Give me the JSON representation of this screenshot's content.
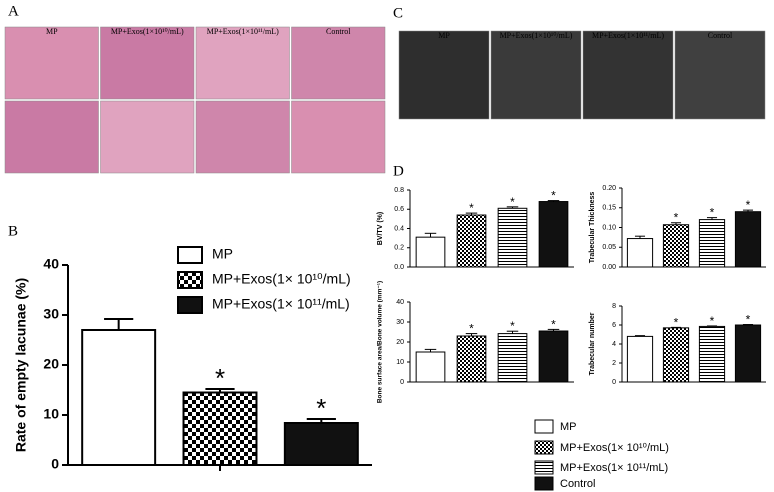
{
  "panels": {
    "A": {
      "letter": "A",
      "columns": [
        "MP",
        "MP+Exos(1×10¹⁰/mL)",
        "MP+Exos(1×10¹¹/mL)",
        "Control"
      ]
    },
    "B": {
      "letter": "B"
    },
    "C": {
      "letter": "C",
      "columns": [
        "MP",
        "MP+Exos(1×10¹⁰/mL)",
        "MP+Exos(1×10¹¹/mL)",
        "Control"
      ]
    },
    "D": {
      "letter": "D"
    }
  },
  "chart_data": [
    {
      "type": "bar",
      "ylabel": "Rate of empty lacunae (%)",
      "ylim": [
        0,
        40
      ],
      "yticks": [
        0,
        10,
        20,
        30,
        40
      ],
      "series": [
        {
          "name": "MP",
          "fill": "white",
          "values": [
            27
          ],
          "errors": [
            2.2
          ]
        },
        {
          "name": "MP+Exos(1× 10¹⁰/mL)",
          "fill": "checker",
          "values": [
            14.5
          ],
          "errors": [
            0.7
          ],
          "note": "*"
        },
        {
          "name": "MP+Exos(1× 10¹¹/mL)",
          "fill": "black",
          "values": [
            8.4
          ],
          "errors": [
            0.8
          ],
          "note": "*"
        }
      ]
    },
    {
      "type": "bar",
      "ylabel": "BV/TV (%)",
      "ylim": [
        0,
        0.8
      ],
      "yticks": [
        {
          "value": 0,
          "label": "0.0"
        },
        0.2,
        0.4,
        0.6,
        0.8
      ],
      "series": [
        {
          "name": "MP",
          "fill": "white",
          "values": [
            0.31
          ],
          "errors": [
            0.04
          ]
        },
        {
          "name": "MP+Exos(1× 10¹⁰/mL)",
          "fill": "checker",
          "values": [
            0.54
          ],
          "errors": [
            0.02
          ],
          "note": "*"
        },
        {
          "name": "MP+Exos(1× 10¹¹/mL)",
          "fill": "stripes",
          "values": [
            0.61
          ],
          "errors": [
            0.015
          ],
          "note": "*"
        },
        {
          "name": "Control",
          "fill": "black",
          "values": [
            0.68
          ],
          "errors": [
            0.01
          ],
          "note": "*"
        }
      ]
    },
    {
      "type": "bar",
      "ylabel": "Trabecular Thickness",
      "ylim": [
        0,
        0.2
      ],
      "yticks": [
        {
          "value": 0,
          "label": "0.00"
        },
        {
          "value": 0.05,
          "label": "0.05"
        },
        {
          "value": 0.1,
          "label": "0.10"
        },
        {
          "value": 0.15,
          "label": "0.15"
        },
        {
          "value": 0.2,
          "label": "0.20"
        }
      ],
      "series": [
        {
          "fill": "white",
          "values": [
            0.072
          ],
          "errors": [
            0.006
          ]
        },
        {
          "fill": "checker",
          "values": [
            0.107
          ],
          "errors": [
            0.005
          ],
          "note": "*"
        },
        {
          "fill": "stripes",
          "values": [
            0.12
          ],
          "errors": [
            0.005
          ],
          "note": "*"
        },
        {
          "fill": "black",
          "values": [
            0.14
          ],
          "errors": [
            0.004
          ],
          "note": "*"
        }
      ]
    },
    {
      "type": "bar",
      "ylabel": "Bone surface area/Bone volume (mm⁻¹)",
      "ylim": [
        0,
        40
      ],
      "yticks": [
        0,
        10,
        20,
        30,
        40
      ],
      "series": [
        {
          "fill": "white",
          "values": [
            15
          ],
          "errors": [
            1.3
          ]
        },
        {
          "fill": "checker",
          "values": [
            23
          ],
          "errors": [
            1.2
          ],
          "note": "*"
        },
        {
          "fill": "stripes",
          "values": [
            24.2
          ],
          "errors": [
            1.2
          ],
          "note": "*"
        },
        {
          "fill": "black",
          "values": [
            25.5
          ],
          "errors": [
            0.8
          ],
          "note": "*"
        }
      ]
    },
    {
      "type": "bar",
      "ylabel": "Trabecular number",
      "ylim": [
        0,
        8
      ],
      "yticks": [
        0,
        2,
        4,
        6,
        8
      ],
      "series": [
        {
          "fill": "white",
          "values": [
            4.8
          ],
          "errors": [
            0.08
          ]
        },
        {
          "fill": "checker",
          "values": [
            5.7
          ],
          "errors": [
            0.05
          ],
          "note": "*"
        },
        {
          "fill": "stripes",
          "values": [
            5.85
          ],
          "errors": [
            0.05
          ],
          "note": "*"
        },
        {
          "fill": "black",
          "values": [
            6.0
          ],
          "errors": [
            0.05
          ],
          "note": "*"
        }
      ]
    }
  ]
}
